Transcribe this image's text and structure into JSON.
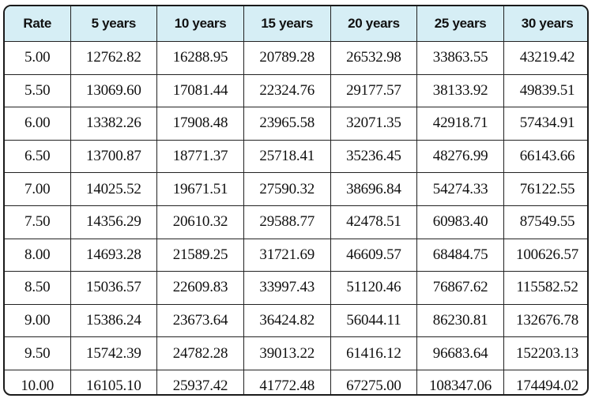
{
  "table": {
    "headers": [
      "Rate",
      "5 years",
      "10 years",
      "15 years",
      "20 years",
      "25 years",
      "30 years"
    ],
    "rows": [
      [
        "5.00",
        "12762.82",
        "16288.95",
        "20789.28",
        "26532.98",
        "33863.55",
        "43219.42"
      ],
      [
        "5.50",
        "13069.60",
        "17081.44",
        "22324.76",
        "29177.57",
        "38133.92",
        "49839.51"
      ],
      [
        "6.00",
        "13382.26",
        "17908.48",
        "23965.58",
        "32071.35",
        "42918.71",
        "57434.91"
      ],
      [
        "6.50",
        "13700.87",
        "18771.37",
        "25718.41",
        "35236.45",
        "48276.99",
        "66143.66"
      ],
      [
        "7.00",
        "14025.52",
        "19671.51",
        "27590.32",
        "38696.84",
        "54274.33",
        "76122.55"
      ],
      [
        "7.50",
        "14356.29",
        "20610.32",
        "29588.77",
        "42478.51",
        "60983.40",
        "87549.55"
      ],
      [
        "8.00",
        "14693.28",
        "21589.25",
        "31721.69",
        "46609.57",
        "68484.75",
        "100626.57"
      ],
      [
        "8.50",
        "15036.57",
        "22609.83",
        "33997.43",
        "51120.46",
        "76867.62",
        "115582.52"
      ],
      [
        "9.00",
        "15386.24",
        "23673.64",
        "36424.82",
        "56044.11",
        "86230.81",
        "132676.78"
      ],
      [
        "9.50",
        "15742.39",
        "24782.28",
        "39013.22",
        "61416.12",
        "96683.64",
        "152203.13"
      ],
      [
        "10.00",
        "16105.10",
        "25937.42",
        "41772.48",
        "67275.00",
        "108347.06",
        "174494.02"
      ]
    ]
  },
  "colors": {
    "header_background": "#d6eef5",
    "border": "#1a1a1a"
  }
}
